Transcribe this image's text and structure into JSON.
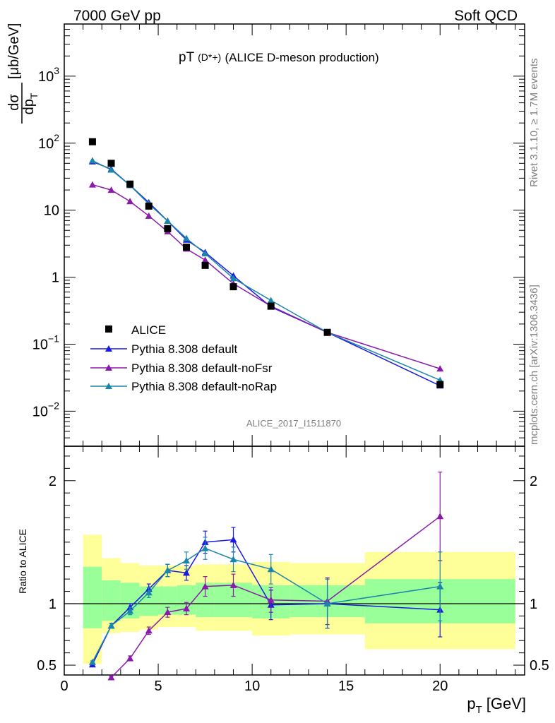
{
  "header": {
    "left": "7000 GeV pp",
    "right": "Soft QCD"
  },
  "side_text": {
    "rivet": "Rivet 3.1.10, ≥ 1.7M events",
    "mcplots": "mcplots.cern.ch [arXiv:1306.3436]"
  },
  "chart_data": [
    {
      "type": "scatter",
      "title_main": "pT",
      "title_particle": "(D*+)",
      "title_rest": "(ALICE D-meson production)",
      "analysis_label": "ALICE_2017_I1511870",
      "y_scale": "log",
      "ylim": [
        0.003,
        6000
      ],
      "xlim": [
        0,
        24.5
      ],
      "ylabel_num": "dσ",
      "ylabel_den": "dp",
      "ylabel_den_sub": "T",
      "ylabel_unit": "[μb/GeV]",
      "y_ticks": [
        {
          "value": 1000,
          "base": "10",
          "exp": "3"
        },
        {
          "value": 100,
          "base": "10",
          "exp": "2"
        },
        {
          "value": 10,
          "base": "10",
          "exp": ""
        },
        {
          "value": 1,
          "base": "1",
          "exp": ""
        },
        {
          "value": 0.1,
          "base": "10",
          "exp": "−1"
        },
        {
          "value": 0.01,
          "base": "10",
          "exp": "−2"
        }
      ],
      "legend_position": "bottom-left",
      "data": {
        "name": "ALICE",
        "color": "#000000",
        "x": [
          1.5,
          2.5,
          3.5,
          4.5,
          5.5,
          6.5,
          7.5,
          9,
          11,
          14,
          20
        ],
        "y": [
          105,
          50,
          24.5,
          11.5,
          5.3,
          2.8,
          1.5,
          0.72,
          0.37,
          0.15,
          0.025
        ]
      },
      "series": [
        {
          "name": "Pythia 8.308 default",
          "color": "#1a1ae0",
          "x": [
            1.5,
            2.5,
            3.5,
            4.5,
            5.5,
            6.5,
            7.5,
            9,
            11,
            14,
            20
          ],
          "y": [
            53,
            41,
            23.5,
            13,
            6.9,
            3.6,
            2.35,
            1.05,
            0.36,
            0.15,
            0.024
          ]
        },
        {
          "name": "Pythia 8.308 default-noFsr",
          "color": "#8b1aaa",
          "x": [
            1.5,
            2.5,
            3.5,
            4.5,
            5.5,
            6.5,
            7.5,
            9,
            11,
            14,
            20
          ],
          "y": [
            24,
            20,
            13.5,
            8.2,
            4.8,
            2.65,
            1.8,
            0.8,
            0.37,
            0.15,
            0.043
          ]
        },
        {
          "name": "Pythia 8.308 default-noRap",
          "color": "#1a86aa",
          "x": [
            1.5,
            2.5,
            3.5,
            4.5,
            5.5,
            6.5,
            7.5,
            9,
            11,
            14,
            20
          ],
          "y": [
            55,
            40,
            23.5,
            12.4,
            6.9,
            3.8,
            2.25,
            0.96,
            0.45,
            0.15,
            0.029
          ]
        }
      ]
    },
    {
      "type": "scatter",
      "ylabel": "Ratio to ALICE",
      "xlabel": "p",
      "xlabel_sub": "T",
      "xlabel_unit": "[GeV]",
      "xlim": [
        0,
        24.5
      ],
      "ylim": [
        0.42,
        2.28
      ],
      "x_ticks": [
        "0",
        "5",
        "10",
        "15",
        "20"
      ],
      "y_ticks": [
        "0.5",
        "1",
        "2"
      ],
      "band_colors": {
        "inner": "#99ff99",
        "outer": "#ffff99"
      },
      "bands": [
        {
          "x0": 1,
          "x1": 2,
          "in_lo": 0.8,
          "in_hi": 1.3,
          "out_lo": 0.51,
          "out_hi": 1.56
        },
        {
          "x0": 2,
          "x1": 3,
          "in_lo": 0.86,
          "in_hi": 1.19,
          "out_lo": 0.76,
          "out_hi": 1.37
        },
        {
          "x0": 3,
          "x1": 4,
          "in_lo": 0.88,
          "in_hi": 1.17,
          "out_lo": 0.77,
          "out_hi": 1.33
        },
        {
          "x0": 4,
          "x1": 5,
          "in_lo": 0.9,
          "in_hi": 1.14,
          "out_lo": 0.79,
          "out_hi": 1.31
        },
        {
          "x0": 5,
          "x1": 6,
          "in_lo": 0.91,
          "in_hi": 1.14,
          "out_lo": 0.81,
          "out_hi": 1.31
        },
        {
          "x0": 6,
          "x1": 7,
          "in_lo": 0.91,
          "in_hi": 1.15,
          "out_lo": 0.81,
          "out_hi": 1.31
        },
        {
          "x0": 7,
          "x1": 8,
          "in_lo": 0.89,
          "in_hi": 1.17,
          "out_lo": 0.78,
          "out_hi": 1.32
        },
        {
          "x0": 8,
          "x1": 10,
          "in_lo": 0.89,
          "in_hi": 1.17,
          "out_lo": 0.78,
          "out_hi": 1.32
        },
        {
          "x0": 10,
          "x1": 12,
          "in_lo": 0.88,
          "in_hi": 1.15,
          "out_lo": 0.74,
          "out_hi": 1.34
        },
        {
          "x0": 12,
          "x1": 16,
          "in_lo": 0.89,
          "in_hi": 1.15,
          "out_lo": 0.75,
          "out_hi": 1.33
        },
        {
          "x0": 16,
          "x1": 24,
          "in_lo": 0.84,
          "in_hi": 1.2,
          "out_lo": 0.63,
          "out_hi": 1.42
        }
      ],
      "series": [
        {
          "name": "Pythia 8.308 default",
          "color": "#1a1ae0",
          "x": [
            1.5,
            2.5,
            3.5,
            4.5,
            5.5,
            6.5,
            7.5,
            9,
            11,
            14,
            20
          ],
          "y": [
            0.505,
            0.82,
            0.97,
            1.12,
            1.27,
            1.25,
            1.5,
            1.52,
            0.99,
            1.0,
            0.95
          ],
          "err": [
            0.01,
            0.02,
            0.03,
            0.04,
            0.05,
            0.06,
            0.09,
            0.1,
            0.12,
            0.2,
            0.22
          ]
        },
        {
          "name": "Pythia 8.308 default-noFsr",
          "color": "#8b1aaa",
          "x": [
            2.5,
            3.5,
            4.5,
            5.5,
            6.5,
            7.5,
            9,
            11,
            14,
            20
          ],
          "y": [
            0.4,
            0.555,
            0.78,
            0.93,
            0.96,
            1.14,
            1.15,
            1.03,
            1.02,
            1.71
          ],
          "err": [
            0.01,
            0.02,
            0.03,
            0.04,
            0.05,
            0.08,
            0.09,
            0.1,
            0.19,
            0.36
          ]
        },
        {
          "name": "Pythia 8.308 default-noRap",
          "color": "#1a86aa",
          "x": [
            1.5,
            2.5,
            3.5,
            4.5,
            5.5,
            6.5,
            7.5,
            9,
            11,
            14,
            20
          ],
          "y": [
            0.525,
            0.82,
            0.94,
            1.09,
            1.27,
            1.35,
            1.45,
            1.36,
            1.28,
            1.0,
            1.14
          ],
          "err": [
            0.01,
            0.02,
            0.03,
            0.04,
            0.05,
            0.07,
            0.09,
            0.1,
            0.12,
            0.2,
            0.28
          ]
        }
      ]
    }
  ]
}
